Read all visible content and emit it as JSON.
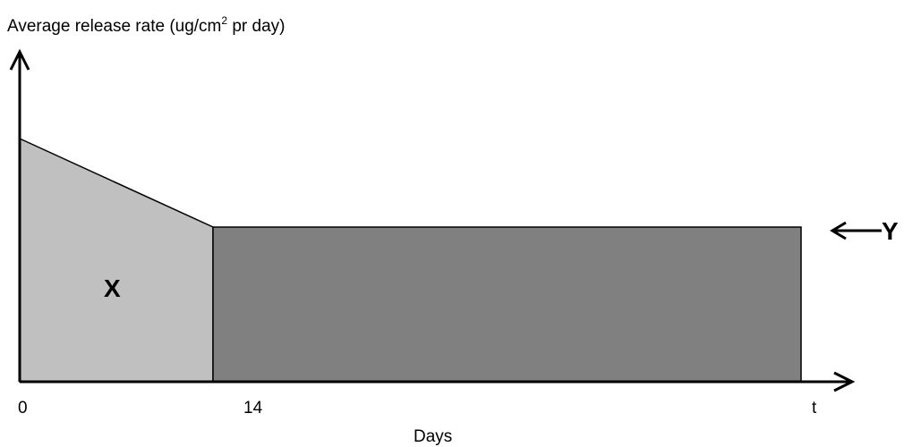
{
  "chart_data": {
    "type": "area",
    "title": "",
    "ylabel_main": "Average release rate (ug/cm",
    "ylabel_sup": "2",
    "ylabel_tail": " pr day)",
    "xlabel": "Days",
    "x_ticks": [
      "0",
      "14",
      "t"
    ],
    "regions": [
      {
        "label": "X",
        "color": "#c0c0c0"
      },
      {
        "label": "",
        "color": "#808080"
      }
    ],
    "annotation": {
      "label": "Y"
    },
    "grid": false,
    "legend": "none"
  }
}
